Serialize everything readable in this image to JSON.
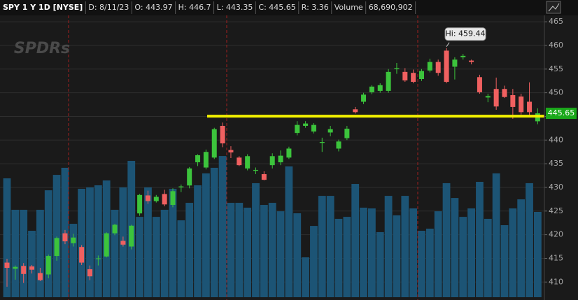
{
  "header": {
    "items": [
      "SPY 1 Y 1D [NYSE]",
      "D: 8/11/23",
      "O: 443.97",
      "H: 446.7",
      "L: 443.35",
      "C: 445.65",
      "R: 3.36",
      "Volume",
      "68,690,902"
    ]
  },
  "chart_data": {
    "type": "candlestick",
    "watermark": "SPDRs",
    "ylim": [
      406.2,
      469.6
    ],
    "yticks": [
      410,
      415,
      420,
      425,
      430,
      435,
      440,
      445,
      450,
      455,
      460,
      465
    ],
    "y2lim": [
      0,
      239300000
    ],
    "grid": true,
    "up_color": "#3cc43c",
    "down_color": "#f06060",
    "volume_color": "#1c5475",
    "open": [
      414.1,
      412.8,
      413.4,
      413.3,
      411.9,
      411.6,
      415.5,
      420.3,
      418.2,
      417.4,
      412.7,
      414.9,
      415.4,
      420.3,
      418.7,
      417.5,
      424.5,
      428.3,
      427.1,
      428.6,
      426.3,
      430.0,
      430.4,
      435.3,
      434.2,
      436.3,
      443.0,
      437.9,
      436.3,
      434.0,
      433.5,
      432.8,
      434.7,
      435.3,
      436.3,
      441.5,
      443.0,
      441.8,
      439.4,
      441.6,
      438.2,
      440.4,
      446.5,
      448.1,
      450.1,
      450.4,
      450.4,
      455.0,
      454.4,
      454.2,
      452.9,
      454.7,
      456.5,
      458.9,
      455.5,
      457.5,
      456.8,
      453.3,
      449.0,
      450.8,
      450.8,
      449.5,
      449.2,
      448.1,
      443.97
    ],
    "high": [
      414.9,
      413.5,
      414.0,
      413.6,
      413.0,
      415.8,
      419.6,
      421.0,
      420.2,
      417.8,
      413.5,
      415.6,
      420.5,
      422.3,
      419.6,
      422.1,
      428.6,
      429.3,
      428.4,
      429.5,
      429.8,
      430.6,
      434.3,
      437.0,
      438.0,
      442.6,
      443.7,
      438.7,
      436.6,
      437.0,
      434.2,
      433.4,
      437.2,
      437.8,
      438.6,
      444.0,
      444.0,
      443.6,
      440.5,
      443.0,
      440.1,
      443.0,
      447.0,
      450.0,
      451.6,
      452.0,
      455.0,
      456.3,
      455.2,
      454.9,
      455.0,
      457.2,
      457.0,
      459.44,
      457.5,
      458.2,
      457.0,
      453.8,
      449.8,
      453.2,
      451.5,
      450.8,
      449.8,
      452.2,
      446.7
    ],
    "low": [
      409.0,
      410.5,
      409.8,
      411.8,
      410.2,
      410.8,
      414.5,
      418.0,
      417.5,
      413.6,
      410.4,
      413.5,
      415.2,
      419.9,
      417.5,
      416.9,
      424.0,
      426.5,
      426.8,
      426.0,
      425.8,
      429.0,
      429.8,
      434.5,
      433.8,
      436.0,
      438.5,
      436.2,
      434.5,
      433.6,
      432.8,
      431.5,
      434.0,
      434.7,
      436.0,
      441.0,
      442.6,
      441.4,
      437.5,
      440.8,
      437.6,
      440.0,
      445.6,
      447.6,
      449.7,
      450.0,
      450.0,
      454.0,
      452.3,
      452.0,
      452.5,
      454.3,
      453.6,
      452.0,
      452.8,
      457.0,
      456.0,
      449.8,
      448.0,
      446.4,
      448.9,
      444.5,
      445.4,
      444.8,
      443.35
    ],
    "close": [
      413.0,
      413.2,
      411.7,
      412.6,
      410.4,
      415.5,
      419.3,
      418.6,
      419.4,
      414.1,
      411.2,
      415.0,
      420.3,
      422.1,
      417.9,
      421.9,
      428.4,
      427.1,
      428.0,
      426.4,
      429.2,
      430.2,
      434.0,
      436.8,
      437.5,
      442.3,
      439.3,
      437.4,
      434.7,
      436.6,
      433.7,
      431.6,
      436.6,
      436.7,
      438.2,
      443.2,
      443.5,
      443.2,
      439.6,
      442.3,
      439.7,
      442.4,
      445.9,
      449.6,
      451.3,
      451.6,
      454.4,
      455.2,
      452.6,
      452.3,
      454.6,
      456.5,
      454.2,
      452.3,
      457.0,
      457.8,
      456.5,
      450.1,
      449.3,
      447.1,
      449.1,
      447.0,
      445.9,
      445.9,
      445.65
    ],
    "volume": [
      95700000,
      70400000,
      70400000,
      53500000,
      70400000,
      86100000,
      98500000,
      104200000,
      59100000,
      87300000,
      88400000,
      90100000,
      94000000,
      70400000,
      88400000,
      109800000,
      64700000,
      88400000,
      64700000,
      70400000,
      87300000,
      61900000,
      76000000,
      90100000,
      99700000,
      104200000,
      113700000,
      76000000,
      76000000,
      72100000,
      91800000,
      74300000,
      76000000,
      69200000,
      105300000,
      67600000,
      32100000,
      57400000,
      81600000,
      81600000,
      63100000,
      64700000,
      91200000,
      72100000,
      71500000,
      52400000,
      81600000,
      65900000,
      81600000,
      71500000,
      53500000,
      55200000,
      69200000,
      91800000,
      79900000,
      64700000,
      71500000,
      92900000,
      63100000,
      99700000,
      58000000,
      71500000,
      78800000,
      91800000,
      68690902
    ],
    "hline": {
      "value": 445.05,
      "color": "#f2f000"
    },
    "high_annotation": {
      "text": "Hi: 459.44",
      "index": 53
    },
    "last_price": 445.65
  }
}
